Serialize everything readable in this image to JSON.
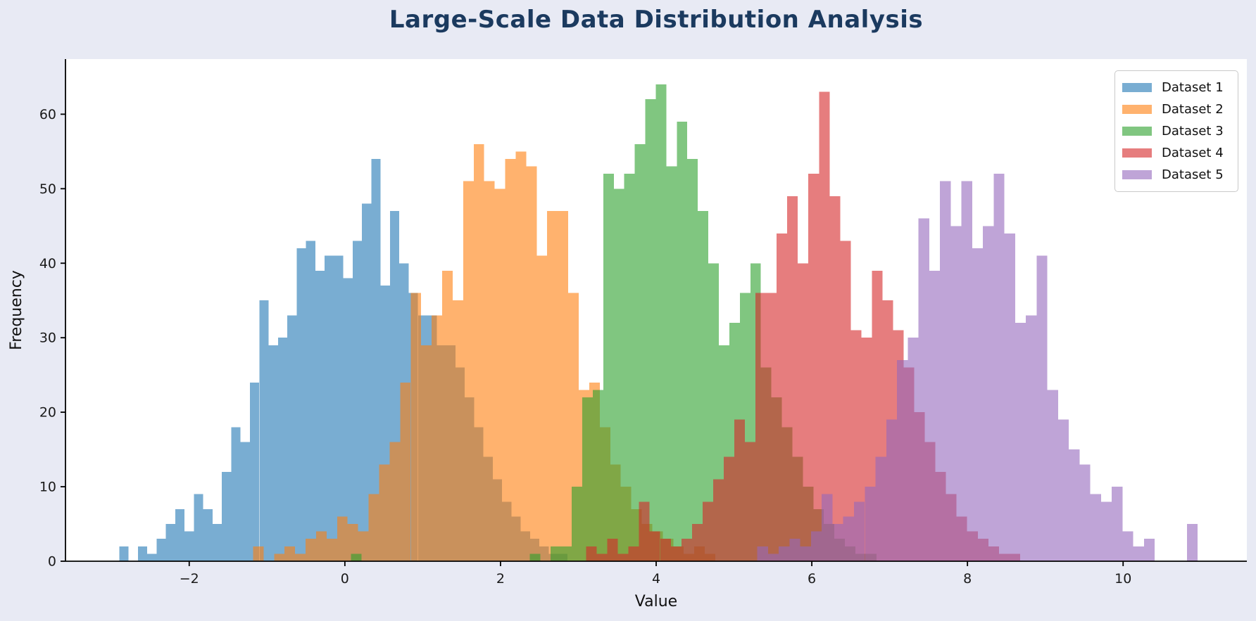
{
  "title": {
    "text": "Large-Scale Data Distribution Analysis",
    "color": "#1b3a5f"
  },
  "colors": {
    "figure_background": "#e8eaf4",
    "plot_background": "#ffffff",
    "spine": "#000000",
    "tick_text": "#1a1a1a"
  },
  "axes": {
    "x_tick_labels": [
      "−2",
      "0",
      "2",
      "4",
      "6",
      "8",
      "10"
    ],
    "x_tick_values": [
      -2,
      0,
      2,
      4,
      6,
      8,
      10
    ],
    "y_tick_labels": [
      "0",
      "10",
      "20",
      "30",
      "40",
      "50",
      "60"
    ],
    "y_tick_values": [
      0,
      10,
      20,
      30,
      40,
      50,
      60
    ]
  },
  "chart_data": {
    "type": "bar",
    "subtype": "overlapping-histograms",
    "title": "Large-Scale Data Distribution Analysis",
    "xlabel": "Value",
    "ylabel": "Frequency",
    "xlim": [
      -3.59,
      11.59
    ],
    "ylim": [
      0,
      67.4
    ],
    "alpha": 0.6,
    "grid": false,
    "legend_position": "upper right",
    "series": [
      {
        "name": "Dataset 1",
        "color": "#1f77b4",
        "bin_start": -2.9,
        "bin_width": 0.12,
        "counts": [
          2,
          0,
          2,
          1,
          3,
          5,
          7,
          4,
          9,
          7,
          5,
          12,
          18,
          16,
          24,
          35,
          29,
          30,
          33,
          42,
          43,
          39,
          41,
          41,
          38,
          43,
          48,
          54,
          37,
          47,
          40,
          36,
          33,
          33,
          29,
          29,
          26,
          22,
          18,
          14,
          11,
          8,
          6,
          4,
          3,
          2,
          1,
          1
        ]
      },
      {
        "name": "Dataset 2",
        "color": "#ff7f0e",
        "bin_start": -1.18,
        "bin_width": 0.135,
        "counts": [
          2,
          0,
          1,
          2,
          1,
          3,
          4,
          3,
          6,
          5,
          4,
          9,
          13,
          16,
          24,
          36,
          29,
          33,
          39,
          35,
          51,
          56,
          51,
          50,
          54,
          55,
          53,
          41,
          47,
          47,
          36,
          23,
          24,
          18,
          13,
          10,
          7,
          5,
          4,
          3,
          2,
          1,
          2,
          1
        ]
      },
      {
        "name": "Dataset 3",
        "color": "#2ca02c",
        "bin_start": 0.08,
        "bin_width": 0.135,
        "counts": [
          1,
          0,
          0,
          0,
          0,
          0,
          0,
          0,
          0,
          0,
          0,
          0,
          0,
          0,
          0,
          0,
          0,
          1,
          0,
          2,
          2,
          10,
          22,
          23,
          52,
          50,
          52,
          56,
          62,
          64,
          53,
          59,
          54,
          47,
          40,
          29,
          32,
          36,
          40,
          26,
          22,
          18,
          14,
          10,
          7,
          5,
          3,
          2,
          1,
          1
        ]
      },
      {
        "name": "Dataset 4",
        "color": "#d62728",
        "bin_start": 3.1,
        "bin_width": 0.136,
        "counts": [
          2,
          1,
          3,
          1,
          2,
          8,
          4,
          3,
          2,
          3,
          5,
          8,
          11,
          14,
          19,
          16,
          36,
          36,
          44,
          49,
          40,
          52,
          63,
          49,
          43,
          31,
          30,
          39,
          35,
          31,
          26,
          20,
          16,
          12,
          9,
          6,
          4,
          3,
          2,
          1,
          1
        ]
      },
      {
        "name": "Dataset 5",
        "color": "#9467bd",
        "bin_start": 5.3,
        "bin_width": 0.138,
        "counts": [
          2,
          1,
          2,
          3,
          2,
          4,
          9,
          5,
          6,
          8,
          10,
          14,
          19,
          27,
          30,
          46,
          39,
          51,
          45,
          51,
          42,
          45,
          52,
          44,
          32,
          33,
          41,
          23,
          19,
          15,
          13,
          9,
          8,
          10,
          4,
          2,
          3,
          0,
          0,
          0,
          5
        ]
      }
    ]
  }
}
